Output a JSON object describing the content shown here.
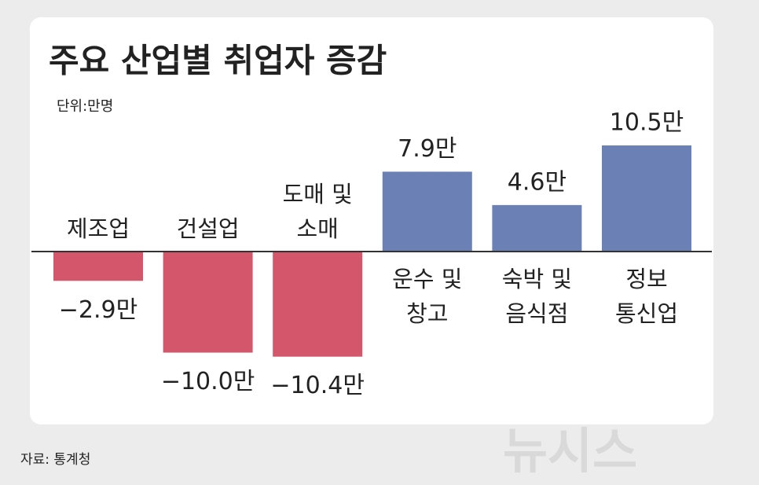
{
  "chart_data": {
    "type": "bar",
    "title": "주요 산업별 취업자 증감",
    "subtitle": "단위:만명",
    "categories": [
      "제조업",
      "건설업",
      "도매 및\n소매",
      "운수 및\n창고",
      "숙박 및\n음식점",
      "정보\n통신업"
    ],
    "values": [
      -2.9,
      -10.0,
      -10.4,
      7.9,
      4.6,
      10.5
    ],
    "value_labels": [
      "−2.9만",
      "−10.0만",
      "−10.4만",
      "7.9만",
      "4.6만",
      "10.5만"
    ],
    "colors": [
      "#d4566b",
      "#d4566b",
      "#d4566b",
      "#6b80b5",
      "#6b80b5",
      "#6b80b5"
    ],
    "source": "자료: 통계청",
    "watermark": "뉴시스"
  }
}
